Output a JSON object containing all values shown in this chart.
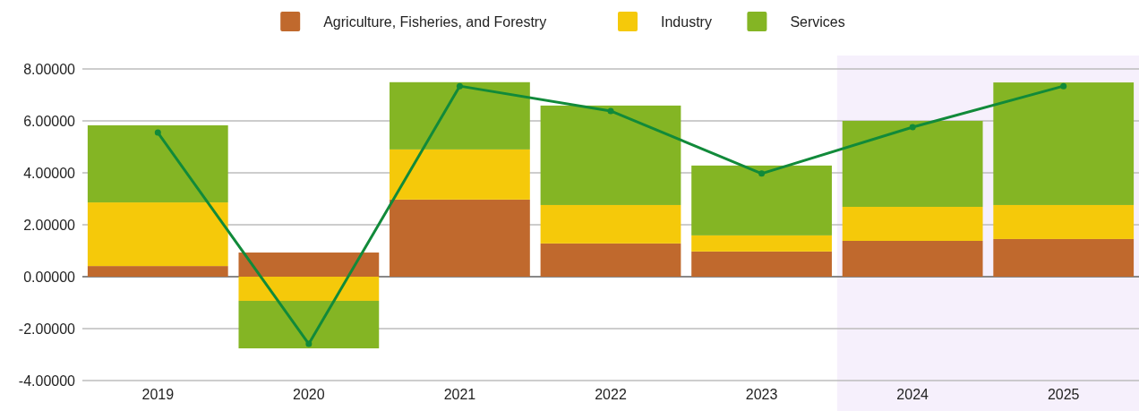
{
  "chart_data": {
    "type": "bar",
    "stacked": true,
    "categories": [
      "2019",
      "2020",
      "2021",
      "2022",
      "2023",
      "2024",
      "2025"
    ],
    "series": [
      {
        "name": "Agriculture, Fisheries, and Forestry",
        "color": "#c0692d",
        "values": [
          0.41,
          0.93,
          2.97,
          1.28,
          0.97,
          1.38,
          1.45
        ]
      },
      {
        "name": "Industry",
        "color": "#f5c90a",
        "values": [
          2.45,
          -0.93,
          1.93,
          1.48,
          0.62,
          1.31,
          1.31
        ]
      },
      {
        "name": "Services",
        "color": "#84b524",
        "values": [
          2.97,
          -1.83,
          2.59,
          3.83,
          2.69,
          3.31,
          4.72
        ]
      },
      {
        "type": "line",
        "color": "#118a3a",
        "values": [
          5.55,
          -2.59,
          7.34,
          6.38,
          3.97,
          5.76,
          7.34
        ]
      }
    ],
    "ylim": [
      -4,
      8
    ],
    "yticks": [
      {
        "value": -4,
        "label": "-4.00000"
      },
      {
        "value": -2,
        "label": "-2.00000"
      },
      {
        "value": 0,
        "label": "0.00000"
      },
      {
        "value": 2,
        "label": "2.00000"
      },
      {
        "value": 4,
        "label": "4.00000"
      },
      {
        "value": 6,
        "label": "6.00000"
      },
      {
        "value": 8,
        "label": "8.00000"
      }
    ],
    "grid": "y",
    "legend": "top",
    "marker": "circle",
    "line_style": "solid",
    "bands": [
      {
        "axis": "x",
        "from": "2024",
        "to": "2025",
        "color": "#f6f0fc"
      }
    ]
  }
}
